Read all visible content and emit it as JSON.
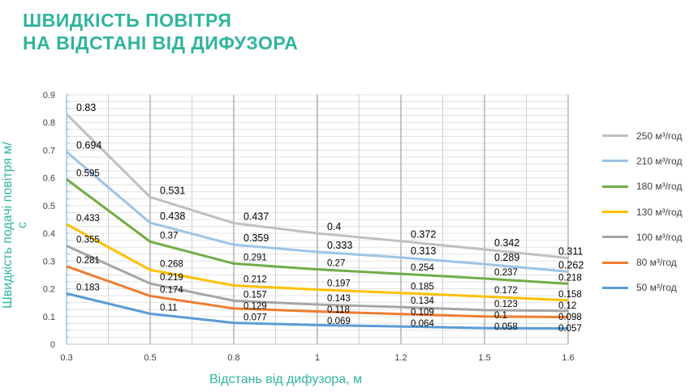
{
  "title_line1": "ШВИДКІСТЬ ПОВІТРЯ",
  "title_line2": "НА ВІДСТАНІ ВІД ДИФУЗОРА",
  "chart_data": {
    "type": "line",
    "title": "ШВИДКІСТЬ ПОВІТРЯ НА ВІДСТАНІ ВІД ДИФУЗОРА",
    "xlabel": "Відстань від дифузора, м",
    "ylabel": "Швидкість подачі повітря м/с",
    "categories": [
      "0.3",
      "0.5",
      "0.8",
      "1",
      "1.2",
      "1.5",
      "1.6"
    ],
    "ylim": [
      0,
      0.9
    ],
    "yticks": [
      "0",
      "0.1",
      "0.2",
      "0.3",
      "0.4",
      "0.5",
      "0.6",
      "0.7",
      "0.8",
      "0.9"
    ],
    "grid": true,
    "legend_position": "right",
    "series": [
      {
        "name": "250 м³/год",
        "color": "#BFBFBF",
        "values": [
          0.83,
          0.531,
          0.437,
          0.4,
          0.372,
          0.342,
          0.311
        ],
        "labels": [
          "0.83",
          "0.531",
          "0.437",
          "0.4",
          "0.372",
          "0.342",
          "0.311"
        ]
      },
      {
        "name": "210 м³/год",
        "color": "#9DC3E6",
        "values": [
          0.694,
          0.438,
          0.359,
          0.333,
          0.313,
          0.289,
          0.262
        ],
        "labels": [
          "0.694",
          "0.438",
          "0.359",
          "0.333",
          "0.313",
          "0.289",
          "0.262"
        ]
      },
      {
        "name": "180 м³/год",
        "color": "#70AD47",
        "values": [
          0.595,
          0.37,
          0.291,
          0.27,
          0.254,
          0.237,
          0.218
        ],
        "labels": [
          "0.595",
          "0.37",
          "0.291",
          "0.27",
          "0.254",
          "0.237",
          "0.218"
        ]
      },
      {
        "name": "130 м³/год",
        "color": "#FFC000",
        "values": [
          0.433,
          0.268,
          0.212,
          0.197,
          0.185,
          0.172,
          0.158
        ],
        "labels": [
          "0.433",
          "0.268",
          "0.212",
          "0.197",
          "0.185",
          "0.172",
          "0.158"
        ]
      },
      {
        "name": "100 м³/год",
        "color": "#A5A5A5",
        "values": [
          0.355,
          0.219,
          0.157,
          0.143,
          0.134,
          0.123,
          0.12
        ],
        "labels": [
          "0.355",
          "0.219",
          "0.157",
          "0.143",
          "0.134",
          "0.123",
          "0.12"
        ]
      },
      {
        "name": "80 м³/год",
        "color": "#ED7D31",
        "values": [
          0.281,
          0.174,
          0.129,
          0.118,
          0.109,
          0.1,
          0.098
        ],
        "labels": [
          "0.281",
          "0.174",
          "0.129",
          "0.118",
          "0.109",
          "0.1",
          "0.098"
        ]
      },
      {
        "name": "50 м³/год",
        "color": "#5B9BD5",
        "values": [
          0.183,
          0.11,
          0.077,
          0.069,
          0.064,
          0.058,
          0.057
        ],
        "labels": [
          "0.183",
          "0.11",
          "0.077",
          "0.069",
          "0.064",
          "0.058",
          "0.057"
        ]
      }
    ]
  }
}
